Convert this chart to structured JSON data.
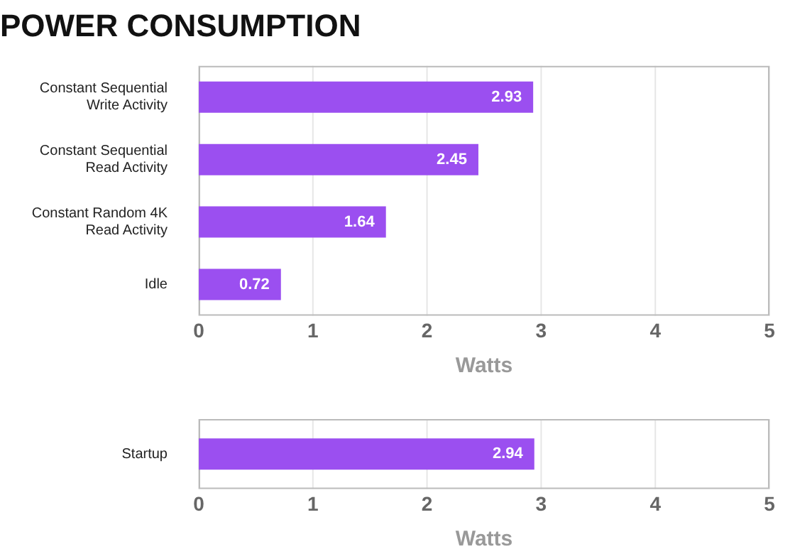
{
  "chart_data": [
    {
      "type": "bar",
      "orientation": "horizontal",
      "title": "POWER CONSUMPTION",
      "categories": [
        "Constant Sequential Write Activity",
        "Constant Sequential Read Activity",
        "Constant Random 4K Read Activity",
        "Idle"
      ],
      "values": [
        2.93,
        2.45,
        1.64,
        0.72
      ],
      "color": "#9b4ff0",
      "xlim": [
        0,
        5
      ],
      "xticks": [
        0,
        1,
        2,
        3,
        4,
        5
      ],
      "xlabel": "Watts",
      "grid": "x",
      "legend": false,
      "data_labels": true
    },
    {
      "type": "bar",
      "orientation": "horizontal",
      "categories": [
        "Startup"
      ],
      "values": [
        2.94
      ],
      "color": "#9b4ff0",
      "xlim": [
        0,
        5
      ],
      "xticks": [
        0,
        1,
        2,
        3,
        4,
        5
      ],
      "xlabel": "Watts",
      "grid": "x",
      "legend": false,
      "data_labels": true
    }
  ]
}
